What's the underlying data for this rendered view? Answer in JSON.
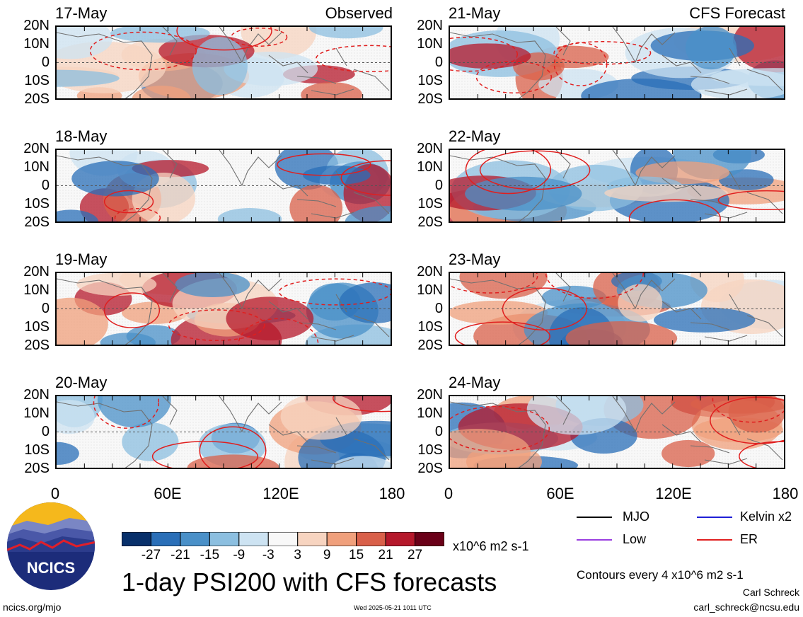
{
  "header": {
    "observed_label": "Observed",
    "forecast_label": "CFS Forecast"
  },
  "latitude_ticks": [
    "20N",
    "10N",
    "0",
    "10S",
    "20S"
  ],
  "longitude_ticks": [
    "0",
    "60E",
    "120E",
    "180"
  ],
  "panels": {
    "observed": [
      {
        "date": "17-May"
      },
      {
        "date": "18-May"
      },
      {
        "date": "19-May"
      },
      {
        "date": "20-May"
      }
    ],
    "forecast": [
      {
        "date": "21-May"
      },
      {
        "date": "22-May"
      },
      {
        "date": "23-May"
      },
      {
        "date": "24-May"
      }
    ]
  },
  "colorbar": {
    "labels": [
      "-27",
      "-21",
      "-15",
      "-9",
      "-3",
      "3",
      "9",
      "15",
      "21",
      "27"
    ],
    "colors": [
      "#08306b",
      "#2a6fb8",
      "#4a90c8",
      "#8cbfe0",
      "#cde3f2",
      "#f8f8f8",
      "#f7d4c0",
      "#f0a07c",
      "#d9604a",
      "#b5182b",
      "#6a0018"
    ],
    "units": "x10^6 m2 s-1"
  },
  "title": "1-day PSI200 with CFS forecasts",
  "legend": {
    "items": [
      {
        "label": "MJO",
        "color": "#000000"
      },
      {
        "label": "Kelvin x2",
        "color": "#1f1fd6"
      },
      {
        "label": "Low",
        "color": "#9a3fe0"
      },
      {
        "label": "ER",
        "color": "#e01f1f"
      }
    ],
    "contour_note": "Contours every 4 x10^6 m2 s-1"
  },
  "logo": {
    "text": "NCICS"
  },
  "footer": {
    "url": "ncics.org/mjo",
    "timestamp": "Wed 2025-05-21 1011 UTC",
    "author": "Carl Schreck",
    "email": "carl_schreck@ncsu.edu"
  }
}
